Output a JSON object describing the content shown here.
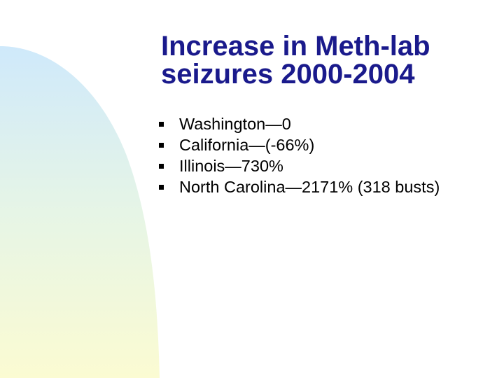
{
  "slide": {
    "title_lines": [
      "Increase in Meth-lab",
      "seizures 2000-2004"
    ],
    "bullets": [
      "Washington—0",
      "California—(-66%)",
      "Illinois—730%",
      "North Carolina—2171% (318 busts)"
    ]
  },
  "colors": {
    "title": "#1a1a8c",
    "text": "#000000",
    "background": "#ffffff",
    "decor_gradient_top": "#cfe9fb",
    "decor_gradient_middle": "#e6f5e6",
    "decor_gradient_bottom": "#fbfbd2"
  }
}
